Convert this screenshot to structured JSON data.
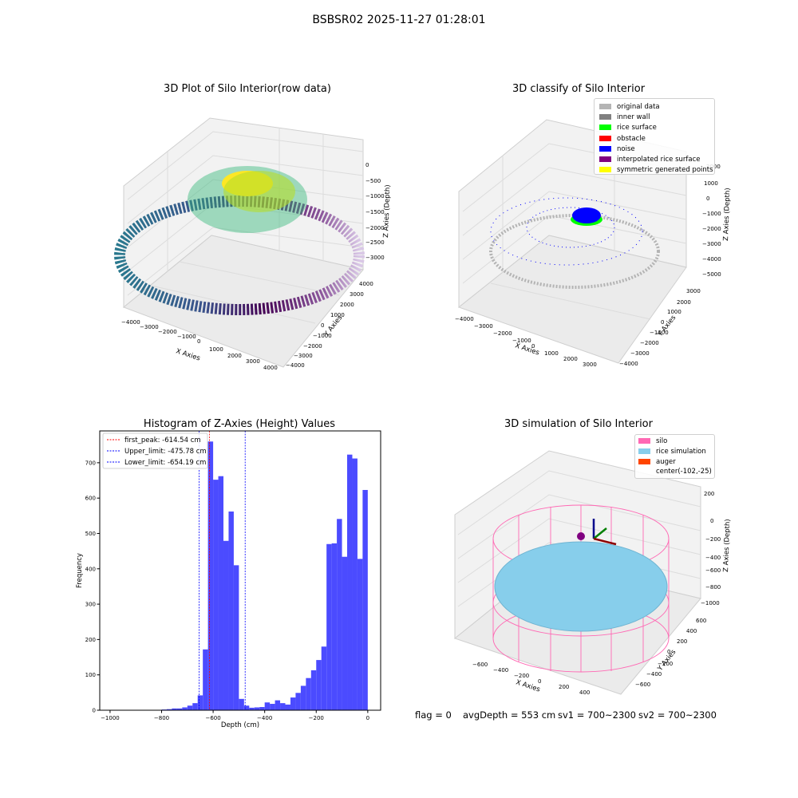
{
  "figure": {
    "suptitle": "BSBSR02 2025-11-27 01:28:01",
    "footer": {
      "flag": "flag = 0",
      "avg_depth": "avgDepth = 553 cm",
      "sv1": "sv1 = 700~2300",
      "sv2": "sv2 = 700~2300"
    }
  },
  "panels": {
    "raw": {
      "title": "3D Plot of Silo Interior(row data)",
      "xlabel": "X Axies",
      "ylabel": "Y Axies",
      "zlabel": "Z Axies (Depth)",
      "xticks": [
        "−4000",
        "−3000",
        "−2000",
        "−1000",
        "0",
        "1000",
        "2000",
        "3000",
        "4000"
      ],
      "yticks": [
        "4000",
        "3000",
        "2000",
        "1000",
        "0",
        "−1000",
        "−2000",
        "−3000",
        "−4000"
      ],
      "zticks": [
        "0",
        "−500",
        "−1000",
        "−1500",
        "−2000",
        "−2500",
        "−3000"
      ],
      "colormap": "viridis"
    },
    "classify": {
      "title": "3D classify of Silo Interior",
      "xlabel": "X Axies",
      "ylabel": "Y Axies",
      "zlabel": "Z Axies (Depth)",
      "xticks": [
        "−4000",
        "−3000",
        "−2000",
        "−1000",
        "0",
        "1000",
        "2000",
        "3000"
      ],
      "yticks": [
        "3000",
        "2000",
        "1000",
        "0",
        "−1000",
        "−2000",
        "−3000",
        "−4000"
      ],
      "zticks": [
        "2000",
        "1000",
        "0",
        "−1000",
        "−2000",
        "−3000",
        "−4000",
        "−5000"
      ],
      "legend": [
        {
          "label": "original data",
          "color": "#b4b4b4"
        },
        {
          "label": "inner wall",
          "color": "#808080"
        },
        {
          "label": "rice surface",
          "color": "#00ff00"
        },
        {
          "label": "obstacle",
          "color": "#ff0000"
        },
        {
          "label": "noise",
          "color": "#0000ff"
        },
        {
          "label": "interpolated rice surface",
          "color": "#800080"
        },
        {
          "label": "symmetric generated points",
          "color": "#ffff00"
        }
      ]
    },
    "simulation": {
      "title": "3D simulation of Silo Interior",
      "xlabel": "X Axies",
      "ylabel": "Y Axies",
      "zlabel": "Z Axies (Depth)",
      "xticks": [
        "−600",
        "−400",
        "−200",
        "0",
        "200",
        "400"
      ],
      "yticks": [
        "600",
        "400",
        "200",
        "0",
        "−200",
        "−400",
        "−600"
      ],
      "zticks": [
        "200",
        "0",
        "−200",
        "−400",
        "−600",
        "−800",
        "−1000"
      ],
      "legend": [
        {
          "label": "silo",
          "color": "#ff69b4"
        },
        {
          "label": "rice simulation",
          "color": "#87ceeb"
        },
        {
          "label": "auger",
          "color": "#ff4500"
        },
        {
          "label": "center(-102,-25)",
          "color": ""
        }
      ]
    }
  },
  "chart_data": {
    "type": "bar",
    "title": "Histogram of Z-Axies (Height) Values",
    "xlabel": "Depth (cm)",
    "ylabel": "Frequency",
    "xlim": [
      -1040,
      50
    ],
    "ylim": [
      0,
      790
    ],
    "xticks": [
      -1000,
      -800,
      -600,
      -400,
      -200,
      0
    ],
    "yticks": [
      0,
      100,
      200,
      300,
      400,
      500,
      600,
      700
    ],
    "bar_color": "#4b4bff",
    "bin_width": 20,
    "bin_starts": [
      -820,
      -800,
      -780,
      -760,
      -740,
      -720,
      -700,
      -680,
      -660,
      -640,
      -620,
      -600,
      -580,
      -560,
      -540,
      -520,
      -500,
      -480,
      -460,
      -440,
      -420,
      -400,
      -380,
      -360,
      -340,
      -320,
      -300,
      -280,
      -260,
      -240,
      -220,
      -200,
      -180,
      -160,
      -140,
      -120,
      -100,
      -80,
      -60,
      -40,
      -20
    ],
    "values": [
      1,
      2,
      3,
      5,
      5,
      8,
      13,
      20,
      42,
      172,
      760,
      652,
      662,
      479,
      562,
      410,
      32,
      13,
      7,
      8,
      9,
      22,
      18,
      28,
      20,
      16,
      36,
      49,
      69,
      91,
      113,
      142,
      180,
      470,
      472,
      541,
      434,
      723,
      712,
      428,
      623
    ],
    "lines": [
      {
        "label": "first_peak: -614.54 cm",
        "x": -614.54,
        "color": "#ff0000"
      },
      {
        "label": "Upper_limit: -475.78 cm",
        "x": -475.78,
        "color": "#0000ff"
      },
      {
        "label": "Lower_limit: -654.19 cm",
        "x": -654.19,
        "color": "#0000ff"
      }
    ],
    "legend_position": "upper left"
  }
}
